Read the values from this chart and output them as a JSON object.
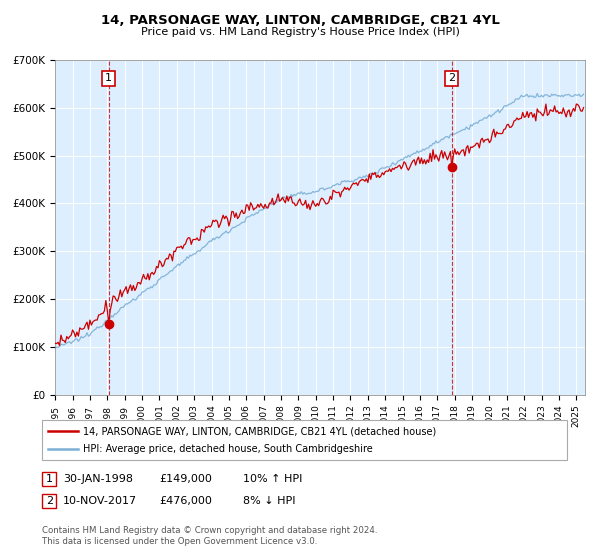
{
  "title": "14, PARSONAGE WAY, LINTON, CAMBRIDGE, CB21 4YL",
  "subtitle": "Price paid vs. HM Land Registry's House Price Index (HPI)",
  "legend_line1": "14, PARSONAGE WAY, LINTON, CAMBRIDGE, CB21 4YL (detached house)",
  "legend_line2": "HPI: Average price, detached house, South Cambridgeshire",
  "annotation1_label": "1",
  "annotation1_date": "30-JAN-1998",
  "annotation1_price": "£149,000",
  "annotation1_hpi": "10% ↑ HPI",
  "annotation2_label": "2",
  "annotation2_date": "10-NOV-2017",
  "annotation2_price": "£476,000",
  "annotation2_hpi": "8% ↓ HPI",
  "footer": "Contains HM Land Registry data © Crown copyright and database right 2024.\nThis data is licensed under the Open Government Licence v3.0.",
  "sale1_x": 1998.083,
  "sale1_y": 149000,
  "sale2_x": 2017.833,
  "sale2_y": 476000,
  "red_color": "#cc0000",
  "blue_color": "#7bafd4",
  "bg_color": "#ddeeff",
  "ylim_min": 0,
  "ylim_max": 700000,
  "xlim_min": 1995.0,
  "xlim_max": 2025.5,
  "yticks": [
    0,
    100000,
    200000,
    300000,
    400000,
    500000,
    600000,
    700000
  ],
  "ytick_labels": [
    "£0",
    "£100K",
    "£200K",
    "£300K",
    "£400K",
    "£500K",
    "£600K",
    "£700K"
  ],
  "xtick_years": [
    1995,
    1996,
    1997,
    1998,
    1999,
    2000,
    2001,
    2002,
    2003,
    2004,
    2005,
    2006,
    2007,
    2008,
    2009,
    2010,
    2011,
    2012,
    2013,
    2014,
    2015,
    2016,
    2017,
    2018,
    2019,
    2020,
    2021,
    2022,
    2023,
    2024,
    2025
  ]
}
